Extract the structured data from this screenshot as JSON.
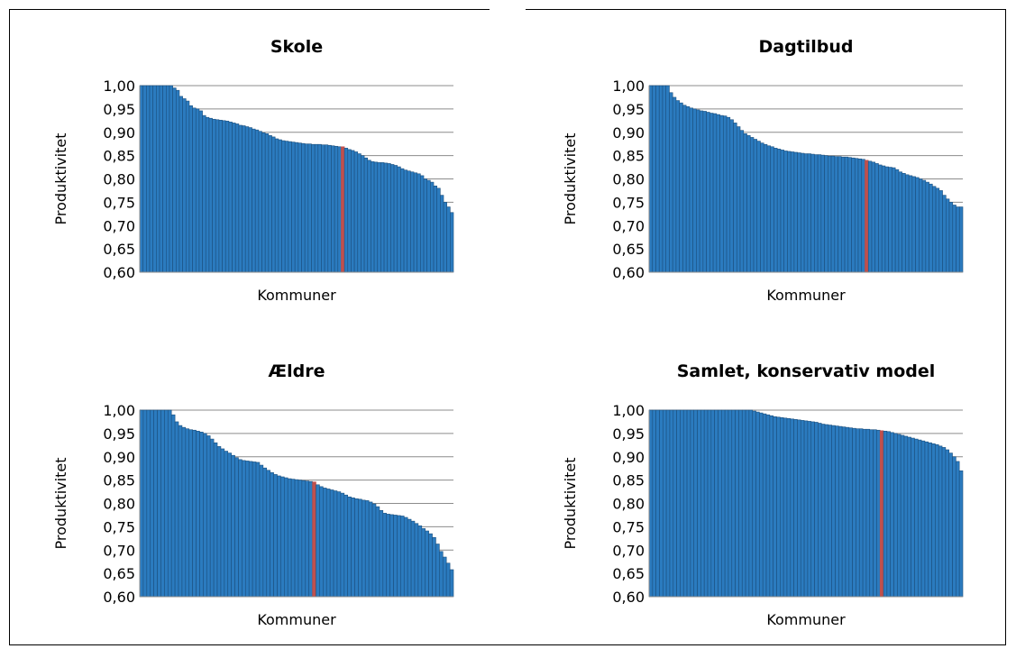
{
  "chart_data": [
    {
      "type": "bar",
      "title": "Skole",
      "xlabel": "Kommuner",
      "ylabel": "Produktivitet",
      "ylim": [
        0.6,
        1.0
      ],
      "yticks": [
        "0,60",
        "0,65",
        "0,70",
        "0,75",
        "0,80",
        "0,85",
        "0,90",
        "0,95",
        "1,00"
      ],
      "highlight_index": 61,
      "colors": {
        "bar": "#2b7bbf",
        "bar_edge": "#1b4f7e",
        "highlight": "#c0504d",
        "grid": "#8c8c8c"
      },
      "values": [
        1.0,
        1.0,
        1.0,
        1.0,
        1.0,
        1.0,
        1.0,
        1.0,
        1.0,
        1.0,
        0.995,
        0.99,
        0.977,
        0.972,
        0.967,
        0.957,
        0.952,
        0.95,
        0.946,
        0.936,
        0.932,
        0.93,
        0.928,
        0.927,
        0.926,
        0.925,
        0.924,
        0.922,
        0.92,
        0.918,
        0.915,
        0.914,
        0.912,
        0.91,
        0.907,
        0.905,
        0.902,
        0.899,
        0.897,
        0.893,
        0.89,
        0.886,
        0.884,
        0.882,
        0.881,
        0.88,
        0.879,
        0.878,
        0.877,
        0.876,
        0.875,
        0.875,
        0.874,
        0.874,
        0.874,
        0.873,
        0.873,
        0.872,
        0.871,
        0.87,
        0.869,
        0.869,
        0.866,
        0.863,
        0.861,
        0.858,
        0.854,
        0.85,
        0.845,
        0.84,
        0.837,
        0.836,
        0.835,
        0.835,
        0.834,
        0.833,
        0.831,
        0.829,
        0.826,
        0.822,
        0.819,
        0.817,
        0.815,
        0.813,
        0.811,
        0.807,
        0.8,
        0.797,
        0.793,
        0.785,
        0.78,
        0.765,
        0.75,
        0.74,
        0.728
      ]
    },
    {
      "type": "bar",
      "title": "Dagtilbud",
      "xlabel": "Kommuner",
      "ylabel": "Produktivitet",
      "ylim": [
        0.6,
        1.0
      ],
      "yticks": [
        "0,60",
        "0,65",
        "0,70",
        "0,75",
        "0,80",
        "0,85",
        "0,90",
        "0,95",
        "1,00"
      ],
      "highlight_index": 64,
      "colors": {
        "bar": "#2b7bbf",
        "bar_edge": "#1b4f7e",
        "highlight": "#c0504d",
        "grid": "#8c8c8c"
      },
      "values": [
        1.0,
        1.0,
        1.0,
        1.0,
        1.0,
        1.0,
        0.985,
        0.975,
        0.968,
        0.963,
        0.958,
        0.955,
        0.952,
        0.95,
        0.948,
        0.946,
        0.945,
        0.943,
        0.941,
        0.94,
        0.938,
        0.936,
        0.935,
        0.932,
        0.927,
        0.92,
        0.912,
        0.904,
        0.897,
        0.893,
        0.889,
        0.885,
        0.881,
        0.877,
        0.874,
        0.871,
        0.869,
        0.866,
        0.864,
        0.862,
        0.86,
        0.859,
        0.858,
        0.857,
        0.856,
        0.855,
        0.854,
        0.854,
        0.853,
        0.852,
        0.852,
        0.851,
        0.85,
        0.849,
        0.849,
        0.848,
        0.848,
        0.847,
        0.847,
        0.846,
        0.845,
        0.844,
        0.843,
        0.842,
        0.84,
        0.838,
        0.836,
        0.833,
        0.83,
        0.828,
        0.826,
        0.825,
        0.824,
        0.82,
        0.815,
        0.812,
        0.809,
        0.807,
        0.805,
        0.803,
        0.8,
        0.797,
        0.793,
        0.789,
        0.784,
        0.78,
        0.775,
        0.765,
        0.757,
        0.75,
        0.744,
        0.74,
        0.74
      ]
    },
    {
      "type": "bar",
      "title": "Ældre",
      "xlabel": "Kommuner",
      "ylabel": "Produktivitet",
      "ylim": [
        0.6,
        1.0
      ],
      "yticks": [
        "0,60",
        "0,65",
        "0,70",
        "0,75",
        "0,80",
        "0,85",
        "0,90",
        "0,95",
        "1,00"
      ],
      "highlight_index": 49,
      "colors": {
        "bar": "#2b7bbf",
        "bar_edge": "#1b4f7e",
        "highlight": "#c0504d",
        "grid": "#8c8c8c"
      },
      "values": [
        1.0,
        1.0,
        1.0,
        1.0,
        1.0,
        1.0,
        1.0,
        1.0,
        1.0,
        0.99,
        0.975,
        0.967,
        0.963,
        0.96,
        0.958,
        0.957,
        0.955,
        0.953,
        0.95,
        0.945,
        0.938,
        0.93,
        0.922,
        0.917,
        0.912,
        0.908,
        0.903,
        0.898,
        0.894,
        0.892,
        0.891,
        0.89,
        0.889,
        0.888,
        0.882,
        0.876,
        0.871,
        0.866,
        0.862,
        0.859,
        0.857,
        0.855,
        0.853,
        0.852,
        0.851,
        0.85,
        0.849,
        0.848,
        0.847,
        0.846,
        0.84,
        0.836,
        0.833,
        0.831,
        0.829,
        0.827,
        0.825,
        0.822,
        0.818,
        0.814,
        0.812,
        0.81,
        0.809,
        0.807,
        0.806,
        0.803,
        0.799,
        0.793,
        0.785,
        0.779,
        0.777,
        0.776,
        0.775,
        0.774,
        0.773,
        0.77,
        0.766,
        0.762,
        0.757,
        0.752,
        0.746,
        0.741,
        0.735,
        0.727,
        0.713,
        0.697,
        0.685,
        0.672,
        0.658
      ]
    },
    {
      "type": "bar",
      "title": "Samlet, konservativ model",
      "xlabel": "Kommuner",
      "ylabel": "Produktivitet",
      "ylim": [
        0.6,
        1.0
      ],
      "yticks": [
        "0,60",
        "0,65",
        "0,70",
        "0,75",
        "0,80",
        "0,85",
        "0,90",
        "0,95",
        "1,00"
      ],
      "highlight_index": 67,
      "colors": {
        "bar": "#2b7bbf",
        "bar_edge": "#1b4f7e",
        "highlight": "#c0504d",
        "grid": "#8c8c8c"
      },
      "values": [
        1.0,
        1.0,
        1.0,
        1.0,
        1.0,
        1.0,
        1.0,
        1.0,
        1.0,
        1.0,
        1.0,
        1.0,
        1.0,
        1.0,
        1.0,
        1.0,
        1.0,
        1.0,
        1.0,
        1.0,
        1.0,
        1.0,
        1.0,
        1.0,
        1.0,
        1.0,
        1.0,
        1.0,
        1.0,
        1.0,
        0.998,
        0.996,
        0.994,
        0.992,
        0.99,
        0.988,
        0.986,
        0.985,
        0.984,
        0.983,
        0.982,
        0.981,
        0.98,
        0.979,
        0.978,
        0.977,
        0.976,
        0.975,
        0.974,
        0.972,
        0.97,
        0.969,
        0.968,
        0.967,
        0.966,
        0.965,
        0.964,
        0.963,
        0.962,
        0.961,
        0.96,
        0.96,
        0.959,
        0.959,
        0.958,
        0.958,
        0.957,
        0.956,
        0.955,
        0.954,
        0.952,
        0.95,
        0.948,
        0.946,
        0.944,
        0.942,
        0.94,
        0.938,
        0.936,
        0.934,
        0.932,
        0.93,
        0.928,
        0.926,
        0.923,
        0.92,
        0.915,
        0.908,
        0.9,
        0.89,
        0.87
      ]
    }
  ]
}
